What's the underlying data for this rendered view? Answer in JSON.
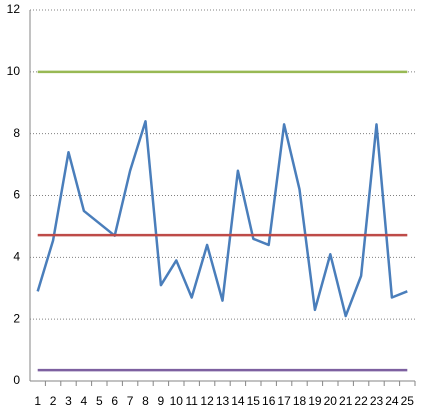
{
  "chart_data": {
    "type": "line",
    "categories": [
      "1",
      "2",
      "3",
      "4",
      "5",
      "6",
      "7",
      "8",
      "9",
      "10",
      "11",
      "12",
      "13",
      "14",
      "15",
      "16",
      "17",
      "18",
      "19",
      "20",
      "21",
      "22",
      "23",
      "24",
      "25"
    ],
    "series": [
      {
        "color": "#4a7ebb",
        "values": [
          2.9,
          4.55,
          7.4,
          5.5,
          5.1,
          4.7,
          6.8,
          8.4,
          3.1,
          3.9,
          2.7,
          4.4,
          2.6,
          6.8,
          4.6,
          4.4,
          8.3,
          6.2,
          2.3,
          4.1,
          2.1,
          3.4,
          8.3,
          2.7,
          2.9
        ]
      },
      {
        "color": "#be4b48",
        "values": [
          4.72,
          4.72,
          4.72,
          4.72,
          4.72,
          4.72,
          4.72,
          4.72,
          4.72,
          4.72,
          4.72,
          4.72,
          4.72,
          4.72,
          4.72,
          4.72,
          4.72,
          4.72,
          4.72,
          4.72,
          4.72,
          4.72,
          4.72,
          4.72,
          4.72
        ]
      },
      {
        "color": "#98b954",
        "values": [
          10,
          10,
          10,
          10,
          10,
          10,
          10,
          10,
          10,
          10,
          10,
          10,
          10,
          10,
          10,
          10,
          10,
          10,
          10,
          10,
          10,
          10,
          10,
          10,
          10
        ]
      },
      {
        "color": "#7d60a0",
        "values": [
          0.35,
          0.35,
          0.35,
          0.35,
          0.35,
          0.35,
          0.35,
          0.35,
          0.35,
          0.35,
          0.35,
          0.35,
          0.35,
          0.35,
          0.35,
          0.35,
          0.35,
          0.35,
          0.35,
          0.35,
          0.35,
          0.35,
          0.35,
          0.35,
          0.35
        ]
      }
    ],
    "ylim": [
      0,
      12
    ],
    "yticks": [
      0,
      2,
      4,
      6,
      8,
      10,
      12
    ],
    "grid": true
  }
}
